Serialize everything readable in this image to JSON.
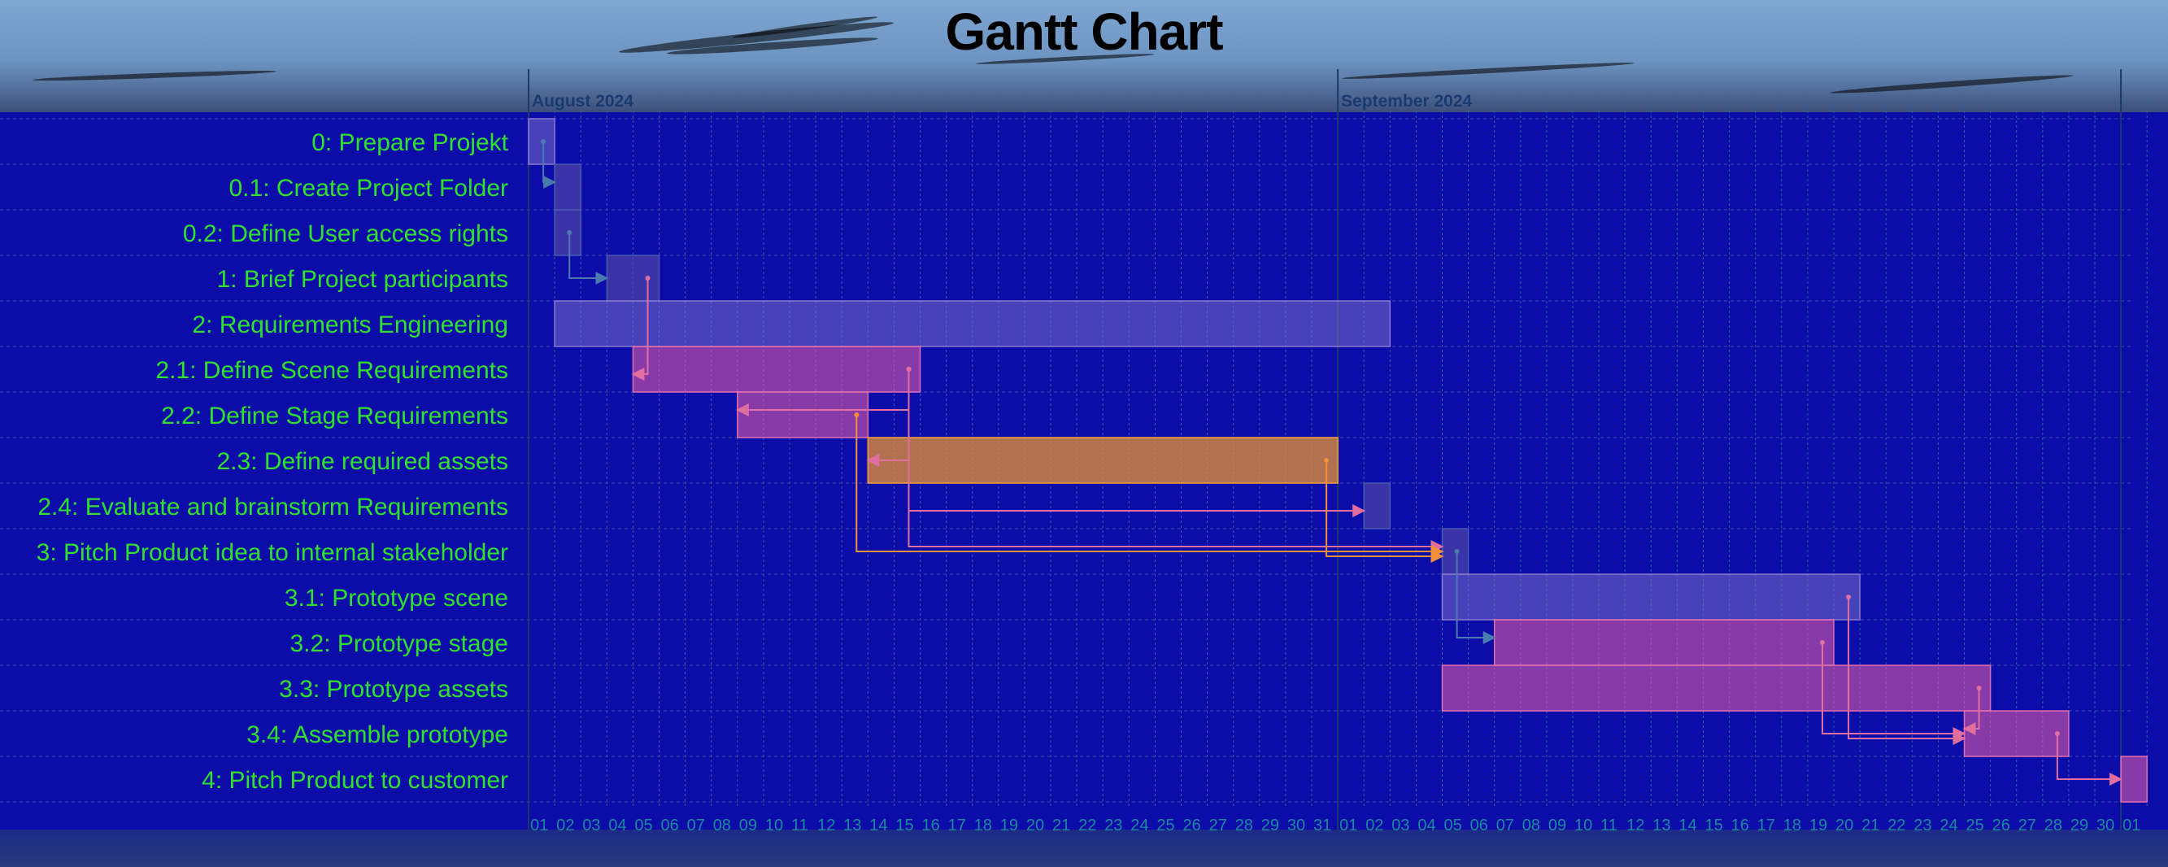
{
  "chart_data": {
    "type": "gantt",
    "title": "Gantt Chart",
    "months": [
      {
        "label": "August 2024",
        "start": "2024-08-01"
      },
      {
        "label": "September 2024",
        "start": "2024-09-01"
      }
    ],
    "x_range": [
      "2024-08-01",
      "2024-10-02"
    ],
    "tasks": [
      {
        "label": "0: Prepare Projekt",
        "start": "2024-08-01",
        "end": "2024-08-02",
        "kind": "summary"
      },
      {
        "label": "0.1: Create Project Folder",
        "start": "2024-08-02",
        "end": "2024-08-03",
        "kind": "task"
      },
      {
        "label": "0.2: Define User access rights",
        "start": "2024-08-02",
        "end": "2024-08-03",
        "kind": "task"
      },
      {
        "label": "1: Brief Project participants",
        "start": "2024-08-04",
        "end": "2024-08-06",
        "kind": "task"
      },
      {
        "label": "2: Requirements Engineering",
        "start": "2024-08-02",
        "end": "2024-09-03",
        "kind": "summary"
      },
      {
        "label": "2.1: Define Scene Requirements",
        "start": "2024-08-05",
        "end": "2024-08-16",
        "kind": "pink"
      },
      {
        "label": "2.2: Define Stage Requirements",
        "start": "2024-08-09",
        "end": "2024-08-14",
        "kind": "pink"
      },
      {
        "label": "2.3: Define required assets",
        "start": "2024-08-14",
        "end": "2024-09-01",
        "kind": "orange"
      },
      {
        "label": "2.4: Evaluate and brainstorm Requirements",
        "start": "2024-09-02",
        "end": "2024-09-03",
        "kind": "task"
      },
      {
        "label": "3: Pitch Product idea to internal stakeholder",
        "start": "2024-09-05",
        "end": "2024-09-06",
        "kind": "task"
      },
      {
        "label": "3.1: Prototype scene",
        "start": "2024-09-05",
        "end": "2024-09-21",
        "kind": "summary"
      },
      {
        "label": "3.2: Prototype stage",
        "start": "2024-09-07",
        "end": "2024-09-20",
        "kind": "pink"
      },
      {
        "label": "3.3: Prototype assets",
        "start": "2024-09-05",
        "end": "2024-09-26",
        "kind": "pink"
      },
      {
        "label": "3.4: Assemble prototype",
        "start": "2024-09-25",
        "end": "2024-09-29",
        "kind": "pink"
      },
      {
        "label": "4: Pitch Product to customer",
        "start": "2024-10-01",
        "end": "2024-10-02",
        "kind": "pink"
      }
    ],
    "dependencies": [
      {
        "from": 0,
        "to": 1,
        "color": "#4a7ab0"
      },
      {
        "from": 2,
        "to": 3,
        "color": "#4a7ab0"
      },
      {
        "from": 3,
        "to": 5,
        "color": "#e06fa0"
      },
      {
        "from": 5,
        "to": 6,
        "color": "#e06fa0"
      },
      {
        "from": 5,
        "to": 7,
        "color": "#e06fa0"
      },
      {
        "from": 5,
        "to": 8,
        "color": "#e06fa0"
      },
      {
        "from": 5,
        "to": 9,
        "color": "#e06fa0"
      },
      {
        "from": 6,
        "to": 9,
        "color": "#f0903a"
      },
      {
        "from": 7,
        "to": 9,
        "color": "#f0903a"
      },
      {
        "from": 9,
        "to": 11,
        "color": "#4a7ab0"
      },
      {
        "from": 11,
        "to": 13,
        "color": "#e06fa0"
      },
      {
        "from": 10,
        "to": 13,
        "color": "#e06fa0"
      },
      {
        "from": 12,
        "to": 13,
        "color": "#e06fa0"
      },
      {
        "from": 13,
        "to": 14,
        "color": "#e06fa0"
      }
    ],
    "colors": {
      "background": "#0c0ca8",
      "label": "#2fe02f",
      "summary": "#4a4aa8",
      "pink": "#b04aa0",
      "orange": "#c08048",
      "grid": "#3060a0"
    }
  }
}
